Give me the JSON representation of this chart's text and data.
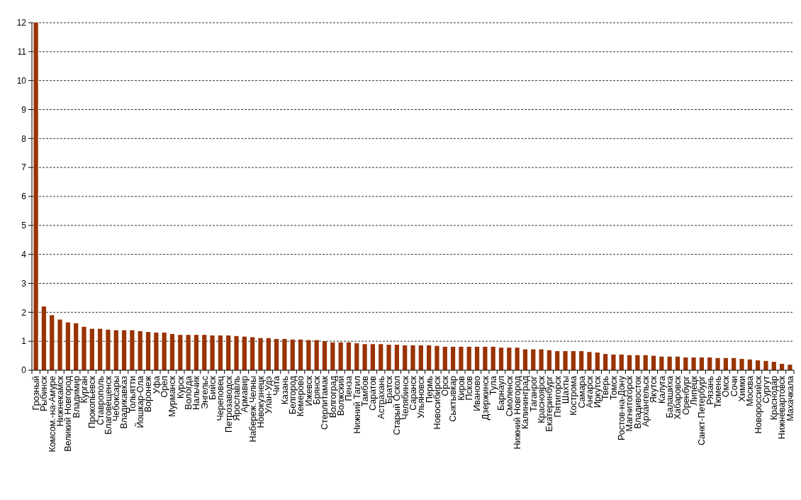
{
  "chart_data": {
    "type": "bar",
    "categories": [
      "Грозный",
      "Рыбинск",
      "Комсом.-на-Амуре",
      "Нижнекамск",
      "Великий Новгород",
      "Владимир",
      "Курган",
      "Прокопьевск",
      "Ставрополь",
      "Благовещенск",
      "Чебоксары",
      "Владикавказ",
      "Тольятти",
      "Йошкар-Ола",
      "Воронеж",
      "Уфа",
      "Орел",
      "Мурманск",
      "Курск",
      "Вологда",
      "Нальчик",
      "Энгельс",
      "Бийск",
      "Череповец",
      "Петрозаводск",
      "Ярославль",
      "Армавир",
      "Набереж.Челны",
      "Новокузнецк",
      "Улан-Удэ",
      "Чита",
      "Казань",
      "Белгород",
      "Кемерово",
      "Ижевск",
      "Брянск",
      "Стерлитамак",
      "Волгоград",
      "Волжский",
      "Пенза",
      "Нижний Тагил",
      "Тамбов",
      "Саратов",
      "Астрахань",
      "Братск",
      "Старый Оскол",
      "Челябинск",
      "Саранск",
      "Ульяновск",
      "Пермь",
      "Новосибирск",
      "Орск",
      "Сыктывкар",
      "Киров",
      "Псков",
      "Иваново",
      "Дзержинск",
      "Тула",
      "Барнаул",
      "Смоленск",
      "Нижний Новгород",
      "Калининград",
      "Таганрог",
      "Красноярск",
      "Екатеринбург",
      "Пятигорск",
      "Шахты",
      "Кострома",
      "Самара",
      "Ангарск",
      "Иркутск",
      "Тверь",
      "Томск",
      "Ростов-на-Дону",
      "Магнитогорск",
      "Владивосток",
      "Архангельск",
      "Якутск",
      "Калуга",
      "Балашиха",
      "Хабаровск",
      "Оренбург",
      "Липецк",
      "Санкт-Петербург",
      "Рязань",
      "Тюмень",
      "Омск",
      "Сочи",
      "Химки",
      "Москва",
      "Новороссийск",
      "Сургут",
      "Краснодар",
      "Нижневартовск",
      "Махачкала"
    ],
    "values": [
      12,
      2.2,
      1.9,
      1.75,
      1.65,
      1.62,
      1.5,
      1.43,
      1.43,
      1.4,
      1.38,
      1.38,
      1.38,
      1.35,
      1.32,
      1.3,
      1.3,
      1.25,
      1.22,
      1.22,
      1.22,
      1.22,
      1.2,
      1.2,
      1.2,
      1.18,
      1.16,
      1.14,
      1.11,
      1.11,
      1.08,
      1.08,
      1.06,
      1.06,
      1.04,
      1.04,
      1.0,
      0.96,
      0.96,
      0.96,
      0.93,
      0.9,
      0.9,
      0.9,
      0.88,
      0.88,
      0.86,
      0.86,
      0.86,
      0.86,
      0.84,
      0.81,
      0.81,
      0.81,
      0.81,
      0.81,
      0.81,
      0.81,
      0.78,
      0.78,
      0.78,
      0.72,
      0.72,
      0.72,
      0.69,
      0.66,
      0.66,
      0.66,
      0.66,
      0.63,
      0.61,
      0.56,
      0.54,
      0.54,
      0.52,
      0.52,
      0.52,
      0.5,
      0.47,
      0.47,
      0.47,
      0.44,
      0.44,
      0.44,
      0.44,
      0.42,
      0.42,
      0.42,
      0.39,
      0.37,
      0.34,
      0.32,
      0.29,
      0.22,
      0.19
    ],
    "color": "#993300",
    "ylim": [
      0,
      12
    ],
    "yticks": [
      0,
      1,
      2,
      3,
      4,
      5,
      6,
      7,
      8,
      9,
      10,
      11,
      12
    ],
    "grid": "y"
  }
}
